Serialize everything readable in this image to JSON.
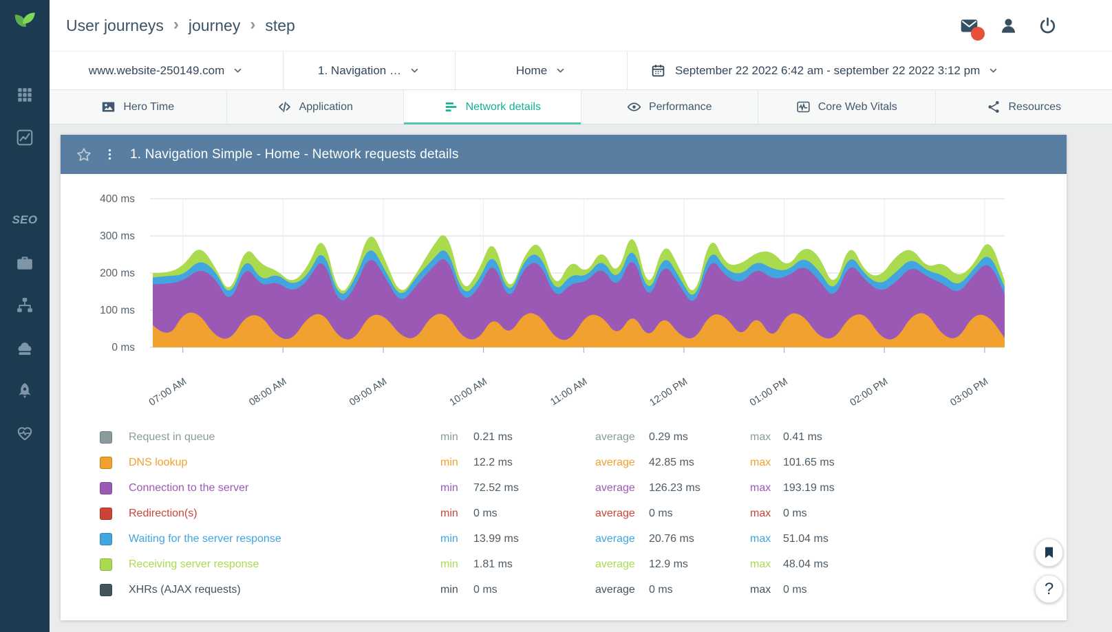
{
  "colors": {
    "accent_teal": "#12B094",
    "sidebar_bg": "#1C3B50",
    "panel_header_bg": "#587FA2",
    "logo_green": "#6FC04F",
    "notification_red": "#E8503A"
  },
  "sidebar": {
    "logo_icon": "leaf-logo-icon",
    "items": [
      {
        "name": "apps",
        "icon": "grid-icon"
      },
      {
        "name": "analytics",
        "icon": "chart-icon"
      },
      {
        "name": "seo",
        "label": "SEO"
      },
      {
        "name": "jobs",
        "icon": "briefcase-icon"
      },
      {
        "name": "sitemap",
        "icon": "sitemap-icon"
      },
      {
        "name": "servers",
        "icon": "cloud-icon"
      },
      {
        "name": "boost",
        "icon": "rocket-icon"
      },
      {
        "name": "health",
        "icon": "heart-pulse-icon"
      }
    ]
  },
  "header": {
    "breadcrumb": [
      "User journeys",
      "journey",
      "step"
    ],
    "action_icons": [
      "envelope-icon",
      "user-icon",
      "power-icon"
    ]
  },
  "filterbar": {
    "items": [
      {
        "name": "website-selector",
        "value": "www.website-250149.com"
      },
      {
        "name": "step-selector",
        "value": "1. Navigation …"
      },
      {
        "name": "page-selector",
        "value": "Home"
      },
      {
        "name": "date-range-selector",
        "value": "September 22 2022 6:42 am - september 22 2022 3:12 pm",
        "icon": "calendar-icon"
      }
    ]
  },
  "tabs": [
    {
      "label": "Hero Time",
      "icon": "image-icon",
      "active": false
    },
    {
      "label": "Application",
      "icon": "code-icon",
      "active": false
    },
    {
      "label": "Network details",
      "icon": "network-icon",
      "active": true
    },
    {
      "label": "Performance",
      "icon": "eye-icon",
      "active": false
    },
    {
      "label": "Core Web Vitals",
      "icon": "vitals-icon",
      "active": false
    },
    {
      "label": "Resources",
      "icon": "resources-icon",
      "active": false
    }
  ],
  "panel": {
    "title": "1. Navigation Simple - Home - Network requests details"
  },
  "legend_stat_labels": {
    "min": "min",
    "average": "average",
    "max": "max"
  },
  "chart_data": {
    "type": "area",
    "stacked": true,
    "title": "1. Navigation Simple - Home - Network requests details",
    "unit": "ms",
    "ylim": [
      0,
      400
    ],
    "y_ticks": [
      "400 ms",
      "300 ms",
      "200 ms",
      "100 ms",
      "0 ms"
    ],
    "x_ticks": [
      "07:00 AM",
      "08:00 AM",
      "09:00 AM",
      "10:00 AM",
      "11:00 AM",
      "12:00 PM",
      "01:00 PM",
      "02:00 PM",
      "03:00 PM"
    ],
    "x_range": [
      "6:42 am",
      "3:12 pm"
    ],
    "grid": true,
    "legend_position": "bottom",
    "series": [
      {
        "name": "Request in queue",
        "color": "#8A9B9E",
        "min": "0.21 ms",
        "average": "0.29 ms",
        "max": "0.41 ms"
      },
      {
        "name": "DNS lookup",
        "color": "#F0A12F",
        "min": "12.2 ms",
        "average": "42.85 ms",
        "max": "101.65 ms",
        "points": [
          60,
          20,
          95,
          92,
          30,
          18,
          85,
          88,
          28,
          18,
          82,
          95,
          25,
          18,
          90,
          85,
          30,
          20,
          88,
          92,
          25,
          18,
          85,
          30,
          95,
          88,
          22,
          18,
          90,
          85,
          28,
          95,
          20,
          88,
          32,
          18,
          92,
          85,
          25,
          90,
          18,
          95,
          88,
          28,
          20,
          85,
          92,
          25,
          18,
          88,
          95,
          30,
          20,
          90,
          85,
          25
        ]
      },
      {
        "name": "Connection to the server",
        "color": "#9B59B6",
        "min": "72.52 ms",
        "average": "126.23 ms",
        "max": "193.19 ms",
        "points": [
          110,
          150,
          85,
          120,
          160,
          95,
          140,
          75,
          150,
          130,
          95,
          155,
          85,
          135,
          165,
          105,
          85,
          145,
          125,
          160,
          95,
          135,
          155,
          85,
          125,
          145,
          105,
          155,
          85,
          135,
          125,
          165,
          95,
          145,
          135,
          85,
          155,
          105,
          145,
          125,
          165,
          95,
          135,
          155,
          105,
          148,
          88,
          122,
          158,
          132,
          95,
          142,
          122,
          105,
          150,
          118
        ]
      },
      {
        "name": "Redirection(s)",
        "color": "#CB4437",
        "min": "0 ms",
        "average": "0 ms",
        "max": "0 ms"
      },
      {
        "name": "Waiting for the server response",
        "color": "#42A5E0",
        "min": "13.99 ms",
        "average": "20.76 ms",
        "max": "51.04 ms",
        "points": [
          18,
          22,
          15,
          25,
          20,
          16,
          24,
          14,
          22,
          18,
          15,
          25,
          16,
          22,
          28,
          18,
          14,
          24,
          20,
          26,
          15,
          22,
          25,
          14,
          20,
          24,
          16,
          25,
          14,
          22,
          20,
          28,
          15,
          24,
          22,
          14,
          26,
          18,
          24,
          20,
          28,
          15,
          22,
          26,
          18,
          24,
          14,
          20,
          27,
          22,
          15,
          24,
          20,
          16,
          25,
          19
        ]
      },
      {
        "name": "Receiving server response",
        "color": "#AADB4F",
        "min": "1.81 ms",
        "average": "12.9 ms",
        "max": "48.04 ms",
        "points": [
          12,
          8,
          25,
          40,
          10,
          6,
          30,
          45,
          8,
          5,
          22,
          38,
          6,
          10,
          42,
          28,
          6,
          8,
          35,
          45,
          8,
          25,
          40,
          6,
          12,
          35,
          8,
          42,
          6,
          28,
          12,
          45,
          8,
          35,
          25,
          6,
          40,
          12,
          30,
          22,
          48,
          8,
          28,
          42,
          10,
          32,
          6,
          22,
          45,
          28,
          8,
          35,
          25,
          10,
          42,
          18
        ]
      },
      {
        "name": "XHRs (AJAX requests)",
        "color": "#42535E",
        "min": "0 ms",
        "average": "0 ms",
        "max": "0 ms"
      }
    ]
  },
  "floating": {
    "help_label": "?"
  }
}
